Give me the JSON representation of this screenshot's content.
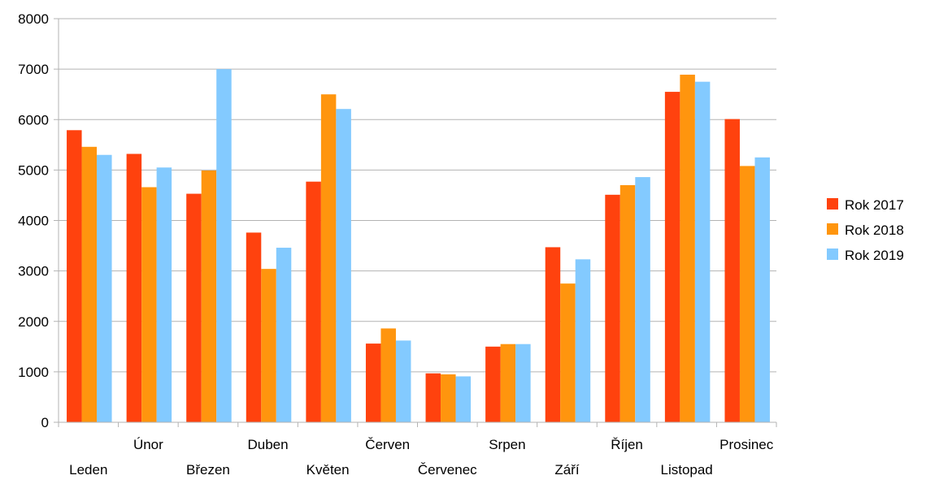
{
  "chart_data": {
    "type": "bar",
    "categories": [
      "Leden",
      "Únor",
      "Březen",
      "Duben",
      "Květen",
      "Červen",
      "Červenec",
      "Srpen",
      "Září",
      "Říjen",
      "Listopad",
      "Prosinec"
    ],
    "series": [
      {
        "name": "Rok 2017",
        "color": "#ff420e",
        "values": [
          5790,
          5320,
          4530,
          3760,
          4770,
          1560,
          970,
          1500,
          3470,
          4510,
          6550,
          6010
        ]
      },
      {
        "name": "Rok 2018",
        "color": "#ff950e",
        "values": [
          5460,
          4660,
          4990,
          3040,
          6500,
          1860,
          950,
          1550,
          2750,
          4700,
          6890,
          5080
        ]
      },
      {
        "name": "Rok 2019",
        "color": "#83caff",
        "values": [
          5300,
          5050,
          7000,
          3460,
          6210,
          1620,
          910,
          1550,
          3230,
          4860,
          6750,
          5250
        ]
      }
    ],
    "ylim": [
      0,
      8000
    ],
    "yticks": [
      0,
      1000,
      2000,
      3000,
      4000,
      5000,
      6000,
      7000,
      8000
    ],
    "grid": true,
    "legend_position": "right"
  }
}
